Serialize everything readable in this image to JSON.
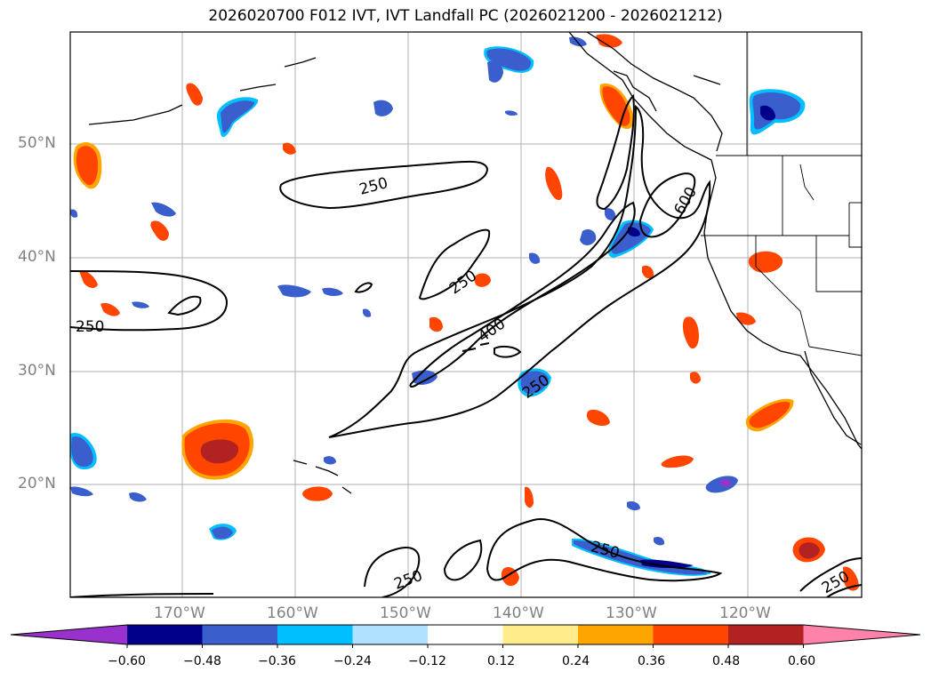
{
  "title": "2026020700 F012 IVT, IVT Landfall PC (2026021200 - 2026021212)",
  "map": {
    "lat_labels": [
      "50°N",
      "40°N",
      "30°N",
      "20°N"
    ],
    "lon_labels": [
      "170°W",
      "160°W",
      "150°W",
      "140°W",
      "130°W",
      "120°W"
    ],
    "contour_labels": [
      "250",
      "250",
      "250",
      "400",
      "600",
      "250",
      "250",
      "250",
      "250"
    ]
  },
  "colorbar": {
    "colors": [
      "#9932cc",
      "#00008b",
      "#3a5fcd",
      "#00bfff",
      "#b0e2ff",
      "#ffffff",
      "#ffec8b",
      "#ffa500",
      "#ff4500",
      "#b22222",
      "#ff82ab"
    ],
    "ticks": [
      "−0.60",
      "−0.48",
      "−0.36",
      "−0.24",
      "−0.12",
      "0.12",
      "0.24",
      "0.36",
      "0.48",
      "0.60"
    ]
  }
}
